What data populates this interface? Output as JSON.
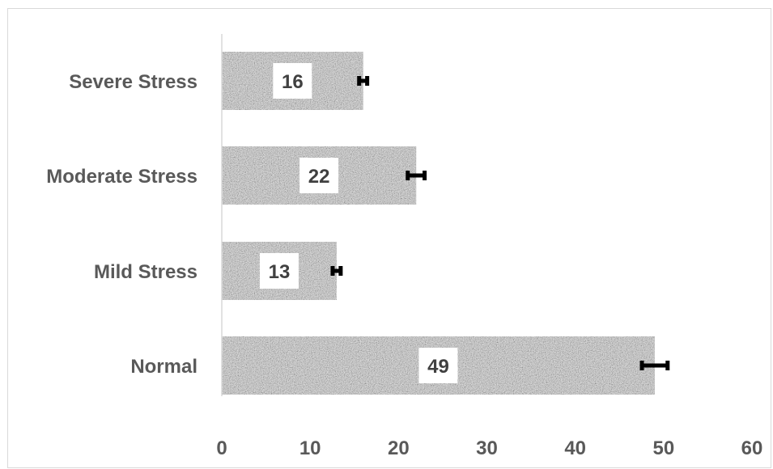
{
  "chart_data": {
    "type": "bar",
    "orientation": "horizontal",
    "title": "",
    "xlabel": "",
    "ylabel": "",
    "categories": [
      "Normal",
      "Mild Stress",
      "Moderate Stress",
      "Severe Stress"
    ],
    "values": [
      49,
      13,
      22,
      16
    ],
    "data_labels": [
      "49",
      "13",
      "22",
      "16"
    ],
    "error_bar_ends": [
      50.5,
      13.5,
      23,
      16.5
    ],
    "xlim": [
      0,
      60
    ],
    "x_ticks": [
      "0",
      "10",
      "20",
      "30",
      "40",
      "50",
      "60"
    ],
    "grid": false,
    "legend": "none",
    "bar_fill": "speckled-gray",
    "colors": {
      "bar": "#b0b0b0",
      "bar_dark": "#5a5a5a",
      "error_bar": "#000000",
      "axis": "#d9d9d9",
      "text": "#595959"
    }
  }
}
